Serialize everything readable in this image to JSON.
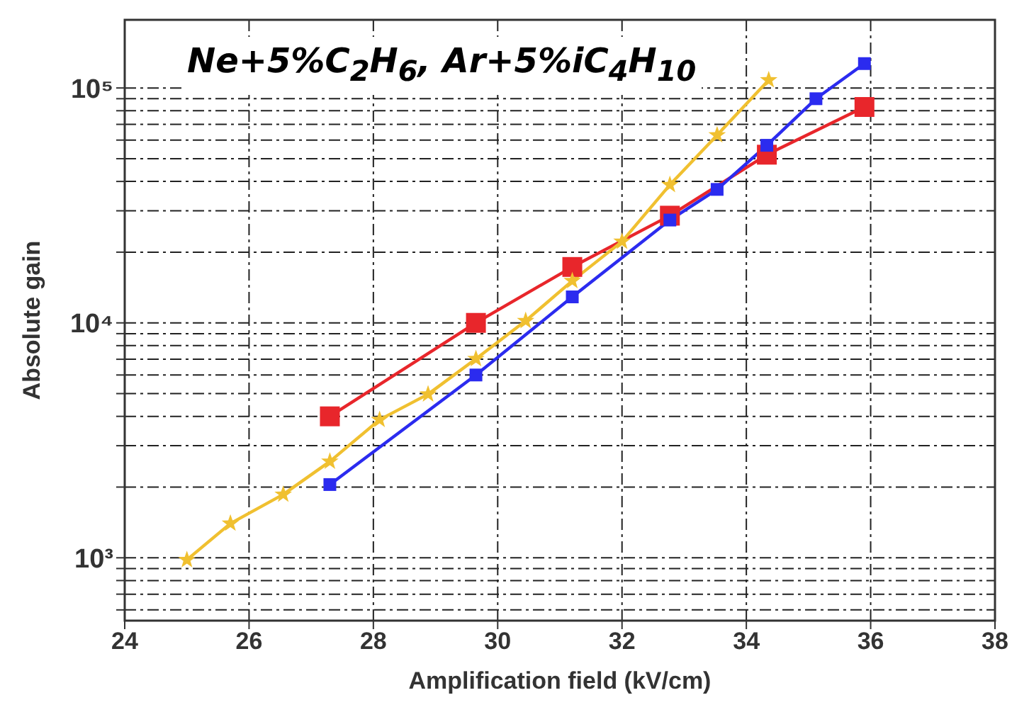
{
  "chart_data": {
    "type": "line",
    "title": "Ne+5%C$_{2}$H$_{6}$, Ar+5%iC$_{4}$H$_{10}$",
    "xlabel": "Amplification field (kV/cm)",
    "ylabel": "Absolute gain",
    "log": "y",
    "grid": true,
    "line_style": "solid",
    "xlim": [
      24,
      38
    ],
    "xticks": [
      24,
      26,
      28,
      30,
      32,
      34,
      36,
      38
    ],
    "ylim": [
      540,
      195000
    ],
    "yticks": [
      {
        "value": 600,
        "label": null
      },
      {
        "value": 700,
        "label": null
      },
      {
        "value": 800,
        "label": null
      },
      {
        "value": 900,
        "label": null
      },
      {
        "value": 1000,
        "label": "10³"
      },
      {
        "value": 2000,
        "label": null
      },
      {
        "value": 3000,
        "label": null
      },
      {
        "value": 4000,
        "label": null
      },
      {
        "value": 5000,
        "label": null
      },
      {
        "value": 6000,
        "label": null
      },
      {
        "value": 7000,
        "label": null
      },
      {
        "value": 8000,
        "label": null
      },
      {
        "value": 9000,
        "label": null
      },
      {
        "value": 10000,
        "label": "10⁴"
      },
      {
        "value": 20000,
        "label": null
      },
      {
        "value": 30000,
        "label": null
      },
      {
        "value": 40000,
        "label": null
      },
      {
        "value": 50000,
        "label": null
      },
      {
        "value": 60000,
        "label": null
      },
      {
        "value": 70000,
        "label": null
      },
      {
        "value": 80000,
        "label": null
      },
      {
        "value": 90000,
        "label": null
      },
      {
        "value": 100000,
        "label": "10⁵"
      }
    ],
    "series": [
      {
        "color": "#e8262b",
        "marker": "square",
        "x": [
          27.3,
          29.65,
          31.2,
          32.77,
          34.33,
          35.9
        ],
        "values": [
          4000,
          10000,
          17300,
          28600,
          52000,
          83000
        ]
      },
      {
        "color": "#2b2bef",
        "marker": "square",
        "x": [
          27.3,
          29.65,
          31.2,
          32.77,
          33.53,
          34.33,
          35.12,
          35.9
        ],
        "values": [
          2050,
          6000,
          12900,
          27400,
          37000,
          57000,
          90000,
          127000
        ]
      },
      {
        "color": "#f0c030",
        "marker": "star",
        "x": [
          25.0,
          25.7,
          26.55,
          27.3,
          28.1,
          28.88,
          29.65,
          30.45,
          31.2,
          32.0,
          32.77,
          33.53,
          34.36
        ],
        "values": [
          980,
          1400,
          1860,
          2570,
          3870,
          4970,
          7030,
          10200,
          15100,
          22200,
          38700,
          63000,
          108000
        ]
      }
    ]
  }
}
